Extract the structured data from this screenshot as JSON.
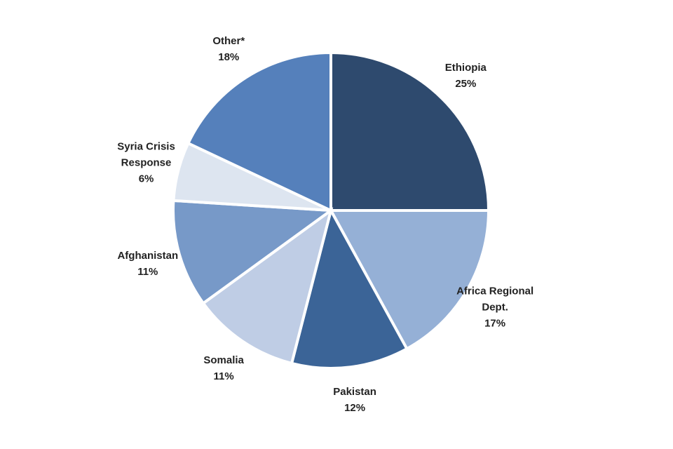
{
  "chart_data": {
    "type": "pie",
    "categories": [
      "Ethiopia",
      "Africa Regional Dept.",
      "Pakistan",
      "Somalia",
      "Afghanistan",
      "Syria Crisis Response",
      "Other*"
    ],
    "values": [
      25,
      17,
      12,
      11,
      11,
      6,
      18
    ],
    "value_labels": [
      "25%",
      "17%",
      "12%",
      "11%",
      "11%",
      "6%",
      "18%"
    ],
    "colors": [
      "#2e4a6e",
      "#95b0d6",
      "#3b6497",
      "#bfcde5",
      "#7799c8",
      "#dde5f0",
      "#5580bb"
    ]
  }
}
